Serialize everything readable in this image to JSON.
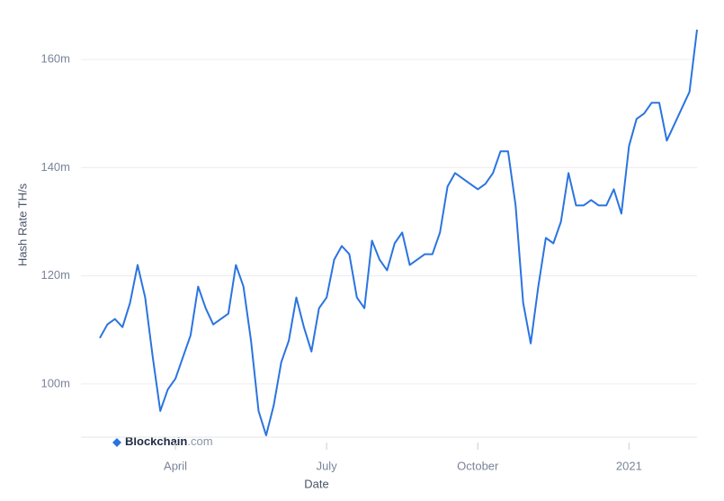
{
  "chart_data": {
    "type": "line",
    "x_label": "Date",
    "y_label": "Hash Rate TH/s",
    "watermark": {
      "brand": "Blockchain",
      "suffix": ".com"
    },
    "categories": [
      null,
      null,
      null,
      null,
      null,
      null,
      null,
      null,
      null,
      null,
      "April",
      null,
      null,
      null,
      null,
      null,
      null,
      null,
      null,
      null,
      null,
      null,
      null,
      null,
      null,
      null,
      null,
      null,
      null,
      null,
      "July",
      null,
      null,
      null,
      null,
      null,
      null,
      null,
      null,
      null,
      null,
      null,
      null,
      null,
      null,
      null,
      null,
      null,
      null,
      null,
      "October",
      null,
      null,
      null,
      null,
      null,
      null,
      null,
      null,
      null,
      null,
      null,
      null,
      null,
      null,
      null,
      null,
      null,
      null,
      null,
      "2021",
      null,
      null,
      null,
      null,
      null,
      null,
      null,
      null,
      null
    ],
    "series": [
      {
        "name": "Hash Rate",
        "color": "#2a74e0",
        "values": [
          108500000,
          111000000,
          112000000,
          110500000,
          115000000,
          122000000,
          116000000,
          105000000,
          95000000,
          99000000,
          101000000,
          105000000,
          109000000,
          118000000,
          114000000,
          111000000,
          112000000,
          113000000,
          122000000,
          118000000,
          108000000,
          95000000,
          90500000,
          96000000,
          104000000,
          108000000,
          116000000,
          110500000,
          106000000,
          114000000,
          116000000,
          123000000,
          125500000,
          124000000,
          116000000,
          114000000,
          126500000,
          123000000,
          121000000,
          126000000,
          128000000,
          122000000,
          123000000,
          124000000,
          124000000,
          128000000,
          136500000,
          139000000,
          138000000,
          137000000,
          136000000,
          137000000,
          139000000,
          143000000,
          143000000,
          133000000,
          115000000,
          107500000,
          118000000,
          127000000,
          126000000,
          130000000,
          139000000,
          133000000,
          133000000,
          134000000,
          133000000,
          133000000,
          136000000,
          131500000,
          144000000,
          149000000,
          150000000,
          152000000,
          152000000,
          145000000,
          148000000,
          151000000,
          154000000,
          165500000
        ]
      }
    ],
    "ylim": [
      90000000,
      168000000
    ],
    "yticks": [
      {
        "value": 100000000,
        "label": "100m"
      },
      {
        "value": 120000000,
        "label": "120m"
      },
      {
        "value": 140000000,
        "label": "140m"
      },
      {
        "value": 160000000,
        "label": "160m"
      }
    ],
    "grid": true
  }
}
